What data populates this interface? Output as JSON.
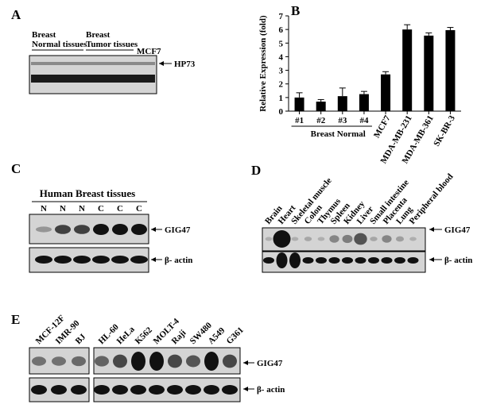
{
  "panels": {
    "A": {
      "label": "A",
      "headers": [
        "Breast",
        "Normal tissues",
        "Breast",
        "Tumor tissues",
        "MCF7"
      ],
      "marker": "HP73"
    },
    "C": {
      "label": "C",
      "title": "Human Breast tissues",
      "lanes": [
        "N",
        "N",
        "N",
        "C",
        "C",
        "C"
      ],
      "markers": [
        "GIG47",
        "β- actin"
      ]
    },
    "D": {
      "label": "D",
      "lanes": [
        "Brain",
        "Heart",
        "Skeletal muscle",
        "Colon",
        "Thymus",
        "Spleen",
        "Kidney",
        "Liver",
        "Small intestine",
        "Placenta",
        "Lung",
        "Peripheral blood"
      ],
      "markers": [
        "GIG47",
        "β- actin"
      ]
    },
    "E": {
      "label": "E",
      "lanes": [
        "MCF-12F",
        "IMR-90",
        "BJ",
        "HL-60",
        "HeLa",
        "K562",
        "MOLT-4",
        "Raji",
        "SW480",
        "A549",
        "G361"
      ],
      "markers": [
        "GIG47",
        "β- actin"
      ]
    }
  },
  "chart_data": {
    "type": "bar",
    "label": "B",
    "ylabel": "Relative Expression (fold)",
    "categories": [
      "#1",
      "#2",
      "#3",
      "#4",
      "MCF7",
      "MDA-MB-231",
      "MDA-MB-361",
      "SK-BR-3"
    ],
    "values": [
      1.0,
      0.7,
      1.1,
      1.25,
      2.7,
      6.0,
      5.55,
      5.95
    ],
    "errors": [
      0.35,
      0.15,
      0.6,
      0.2,
      0.2,
      0.35,
      0.2,
      0.2
    ],
    "group_label": "Breast Normal",
    "color": "#000000",
    "ylim": [
      0,
      7
    ],
    "yticks": [
      0,
      1,
      2,
      3,
      4,
      5,
      6,
      7
    ]
  }
}
